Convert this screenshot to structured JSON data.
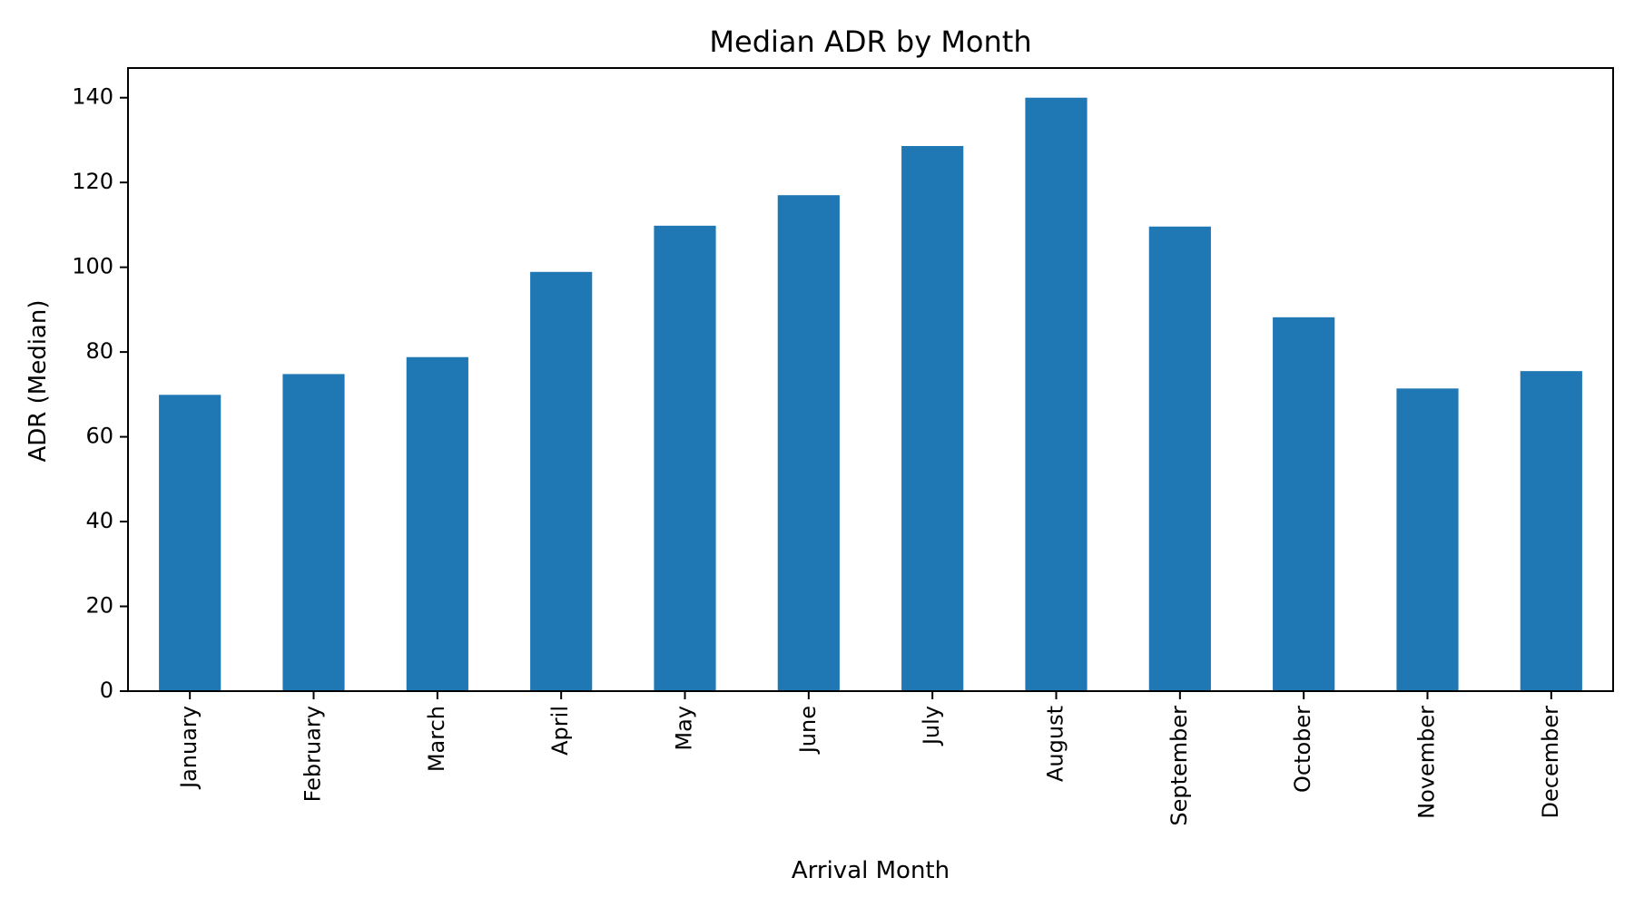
{
  "chart_data": {
    "type": "bar",
    "title": "Median ADR by Month",
    "xlabel": "Arrival Month",
    "ylabel": "ADR (Median)",
    "categories": [
      "January",
      "February",
      "March",
      "April",
      "May",
      "June",
      "July",
      "August",
      "September",
      "October",
      "November",
      "December"
    ],
    "values": [
      69.9,
      74.8,
      78.8,
      98.9,
      109.8,
      117.0,
      128.6,
      140.0,
      109.6,
      88.2,
      71.4,
      75.5
    ],
    "ylim": [
      0,
      147
    ],
    "yticks": [
      0,
      20,
      40,
      60,
      80,
      100,
      120,
      140
    ],
    "bar_color": "#1f77b4",
    "grid": false,
    "legend": "none"
  }
}
